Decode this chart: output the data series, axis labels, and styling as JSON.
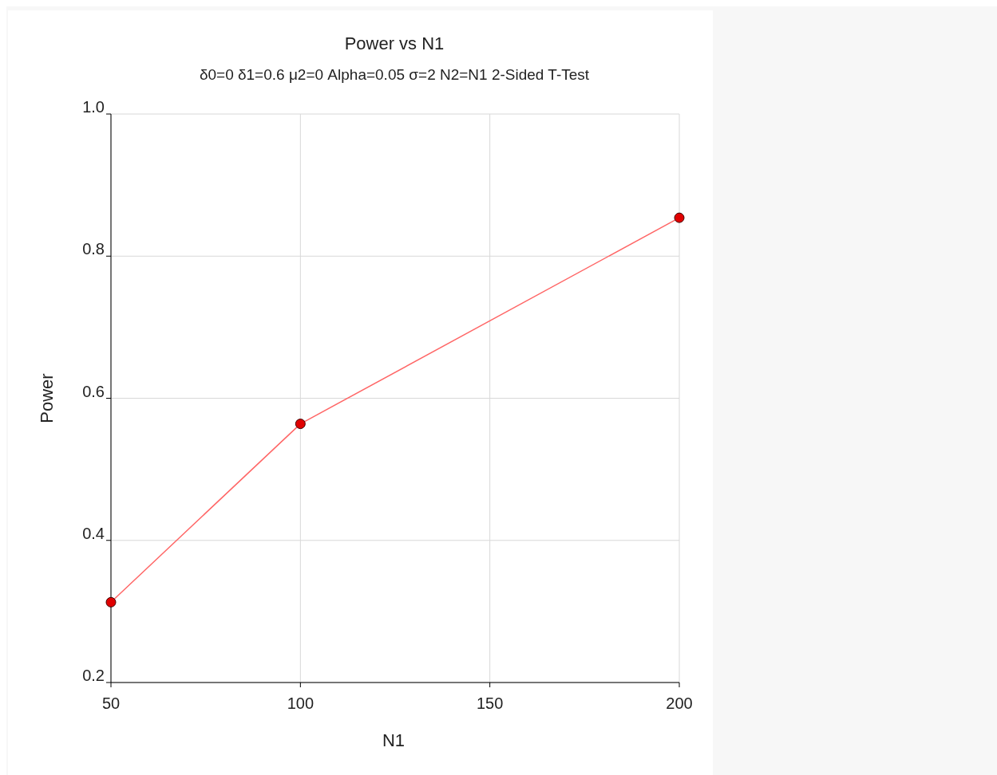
{
  "chart_data": {
    "type": "line",
    "title": "Power vs N1",
    "subtitle": "δ0=0 δ1=0.6 μ2=0 Alpha=0.05 σ=2 N2=N1 2-Sided T-Test",
    "xlabel": "N1",
    "ylabel": "Power",
    "x": [
      50,
      100,
      200
    ],
    "series": [
      {
        "color": "#ff6666",
        "values": [
          0.313,
          0.564,
          0.854
        ]
      }
    ],
    "xlim": [
      50,
      200
    ],
    "xticks": [
      50,
      100,
      150,
      200
    ],
    "ylim": [
      0.2,
      1.0
    ],
    "yticks": [
      {
        "value": 0.2,
        "label": "0.2"
      },
      {
        "value": 0.4,
        "label": "0.4"
      },
      {
        "value": 0.6,
        "label": "0.6"
      },
      {
        "value": 0.8,
        "label": "0.8"
      },
      {
        "value": 1.0,
        "label": "1.0"
      }
    ],
    "grid": true,
    "marker": "circle",
    "line_style": "solid"
  }
}
